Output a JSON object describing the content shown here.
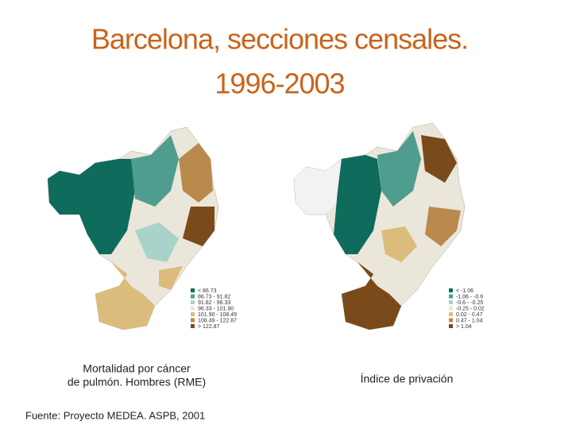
{
  "title": {
    "line1": "Barcelona, secciones censales.",
    "line2": "1996-2003"
  },
  "maps": [
    {
      "caption": [
        "Mortalidad por cáncer",
        "de pulmón. Hombres (RME)"
      ],
      "legend": [
        {
          "label": "< 86.73",
          "color": "#0f6b5c"
        },
        {
          "label": "86.73 - 91.82",
          "color": "#4f9d8f"
        },
        {
          "label": "91.82 - 96.33",
          "color": "#a9d2ca"
        },
        {
          "label": "96.33 - 101.90",
          "color": "#eae6da"
        },
        {
          "label": "101.90 - 108.49",
          "color": "#dcbc7c"
        },
        {
          "label": "108.49 - 122.87",
          "color": "#b98a4c"
        },
        {
          "label": "> 122.87",
          "color": "#7a4a1a"
        }
      ]
    },
    {
      "caption": [
        "Índice de privación"
      ],
      "legend": [
        {
          "label": "< -1.06",
          "color": "#0f6b5c"
        },
        {
          "label": "-1.06 - -0.6",
          "color": "#4f9d8f"
        },
        {
          "label": "-0.6 - -0.25",
          "color": "#a9d2ca"
        },
        {
          "label": "-0.25 - 0.02",
          "color": "#eae6da"
        },
        {
          "label": "0.02 - 0.47",
          "color": "#dcbc7c"
        },
        {
          "label": "0.47 - 1.04",
          "color": "#b98a4c"
        },
        {
          "label": "> 1.04",
          "color": "#7a4a1a"
        }
      ]
    }
  ],
  "source": "Fuente: Proyecto MEDEA. ASPB, 2001"
}
